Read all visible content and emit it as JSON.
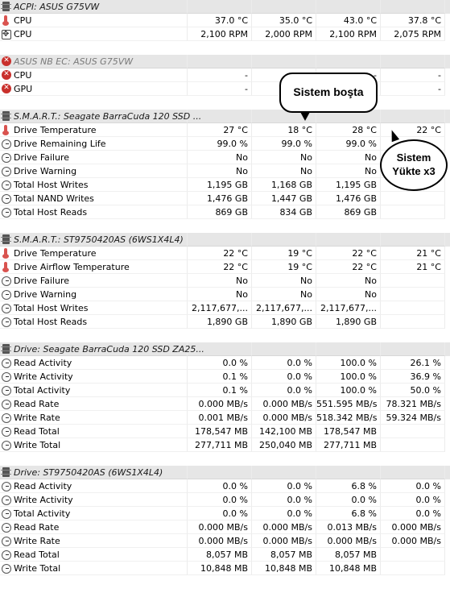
{
  "sections": [
    {
      "header": {
        "icon": "chip-icon",
        "label": "ACPI: ASUS G75VW",
        "error": false
      },
      "rows": [
        {
          "icon": "thermometer-icon",
          "label": "CPU",
          "v": [
            "37.0 °C",
            "35.0 °C",
            "43.0 °C",
            "37.8 °C"
          ]
        },
        {
          "icon": "fan-icon",
          "label": "CPU",
          "v": [
            "2,100 RPM",
            "2,000 RPM",
            "2,100 RPM",
            "2,075 RPM"
          ]
        }
      ]
    },
    {
      "header": {
        "icon": "error-icon",
        "label": "ASUS NB EC: ASUS G75VW",
        "error": true
      },
      "rows": [
        {
          "icon": "error-icon",
          "label": "CPU",
          "v": [
            "-",
            "-",
            "-",
            "-"
          ]
        },
        {
          "icon": "error-icon",
          "label": "GPU",
          "v": [
            "-",
            "-",
            "-",
            "-"
          ]
        }
      ]
    },
    {
      "header": {
        "icon": "chip-icon",
        "label": "S.M.A.R.T.: Seagate BarraCuda 120 SSD ...",
        "error": false
      },
      "rows": [
        {
          "icon": "thermometer-icon",
          "label": "Drive Temperature",
          "v": [
            "27 °C",
            "18 °C",
            "28 °C",
            "22 °C"
          ]
        },
        {
          "icon": "clock-icon",
          "label": "Drive Remaining Life",
          "v": [
            "99.0 %",
            "99.0 %",
            "99.0 %",
            ""
          ]
        },
        {
          "icon": "clock-icon",
          "label": "Drive Failure",
          "v": [
            "No",
            "No",
            "No",
            ""
          ]
        },
        {
          "icon": "clock-icon",
          "label": "Drive Warning",
          "v": [
            "No",
            "No",
            "No",
            ""
          ]
        },
        {
          "icon": "clock-icon",
          "label": "Total Host Writes",
          "v": [
            "1,195 GB",
            "1,168 GB",
            "1,195 GB",
            ""
          ]
        },
        {
          "icon": "clock-icon",
          "label": "Total NAND Writes",
          "v": [
            "1,476 GB",
            "1,447 GB",
            "1,476 GB",
            ""
          ]
        },
        {
          "icon": "clock-icon",
          "label": "Total Host Reads",
          "v": [
            "869 GB",
            "834 GB",
            "869 GB",
            ""
          ]
        }
      ]
    },
    {
      "header": {
        "icon": "chip-icon",
        "label": "S.M.A.R.T.: ST9750420AS (6WS1X4L4)",
        "error": false
      },
      "rows": [
        {
          "icon": "thermometer-icon",
          "label": "Drive Temperature",
          "v": [
            "22 °C",
            "19 °C",
            "22 °C",
            "21 °C"
          ]
        },
        {
          "icon": "thermometer-icon",
          "label": "Drive Airflow Temperature",
          "v": [
            "22 °C",
            "19 °C",
            "22 °C",
            "21 °C"
          ]
        },
        {
          "icon": "clock-icon",
          "label": "Drive Failure",
          "v": [
            "No",
            "No",
            "No",
            ""
          ]
        },
        {
          "icon": "clock-icon",
          "label": "Drive Warning",
          "v": [
            "No",
            "No",
            "No",
            ""
          ]
        },
        {
          "icon": "clock-icon",
          "label": "Total Host Writes",
          "v": [
            "2,117,677,...",
            "2,117,677,...",
            "2,117,677,...",
            ""
          ]
        },
        {
          "icon": "clock-icon",
          "label": "Total Host Reads",
          "v": [
            "1,890 GB",
            "1,890 GB",
            "1,890 GB",
            ""
          ]
        }
      ]
    },
    {
      "header": {
        "icon": "chip-icon",
        "label": "Drive: Seagate BarraCuda 120 SSD ZA25...",
        "error": false
      },
      "rows": [
        {
          "icon": "clock-icon",
          "label": "Read Activity",
          "v": [
            "0.0 %",
            "0.0 %",
            "100.0 %",
            "26.1 %"
          ]
        },
        {
          "icon": "clock-icon",
          "label": "Write Activity",
          "v": [
            "0.1 %",
            "0.0 %",
            "100.0 %",
            "36.9 %"
          ]
        },
        {
          "icon": "clock-icon",
          "label": "Total Activity",
          "v": [
            "0.1 %",
            "0.0 %",
            "100.0 %",
            "50.0 %"
          ]
        },
        {
          "icon": "clock-icon",
          "label": "Read Rate",
          "v": [
            "0.000 MB/s",
            "0.000 MB/s",
            "551.595 MB/s",
            "78.321 MB/s"
          ]
        },
        {
          "icon": "clock-icon",
          "label": "Write Rate",
          "v": [
            "0.001 MB/s",
            "0.000 MB/s",
            "518.342 MB/s",
            "59.324 MB/s"
          ]
        },
        {
          "icon": "clock-icon",
          "label": "Read Total",
          "v": [
            "178,547 MB",
            "142,100 MB",
            "178,547 MB",
            ""
          ]
        },
        {
          "icon": "clock-icon",
          "label": "Write Total",
          "v": [
            "277,711 MB",
            "250,040 MB",
            "277,711 MB",
            ""
          ]
        }
      ]
    },
    {
      "header": {
        "icon": "chip-icon",
        "label": "Drive: ST9750420AS (6WS1X4L4)",
        "error": false
      },
      "rows": [
        {
          "icon": "clock-icon",
          "label": "Read Activity",
          "v": [
            "0.0 %",
            "0.0 %",
            "6.8 %",
            "0.0 %"
          ]
        },
        {
          "icon": "clock-icon",
          "label": "Write Activity",
          "v": [
            "0.0 %",
            "0.0 %",
            "0.0 %",
            "0.0 %"
          ]
        },
        {
          "icon": "clock-icon",
          "label": "Total Activity",
          "v": [
            "0.0 %",
            "0.0 %",
            "6.8 %",
            "0.0 %"
          ]
        },
        {
          "icon": "clock-icon",
          "label": "Read Rate",
          "v": [
            "0.000 MB/s",
            "0.000 MB/s",
            "0.013 MB/s",
            "0.000 MB/s"
          ]
        },
        {
          "icon": "clock-icon",
          "label": "Write Rate",
          "v": [
            "0.000 MB/s",
            "0.000 MB/s",
            "0.000 MB/s",
            "0.000 MB/s"
          ]
        },
        {
          "icon": "clock-icon",
          "label": "Read Total",
          "v": [
            "8,057 MB",
            "8,057 MB",
            "8,057 MB",
            ""
          ]
        },
        {
          "icon": "clock-icon",
          "label": "Write Total",
          "v": [
            "10,848 MB",
            "10,848 MB",
            "10,848 MB",
            ""
          ]
        }
      ]
    }
  ],
  "callouts": {
    "idle": "Sistem boşta",
    "load_line1": "Sistem",
    "load_line2": "Yükte x3"
  }
}
